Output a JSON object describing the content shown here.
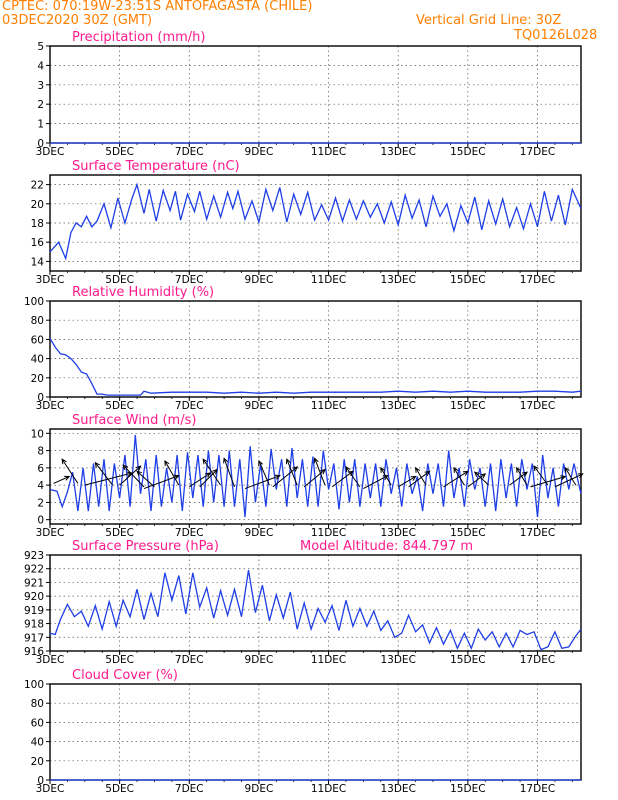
{
  "header": {
    "line1": "CPTEC:   070:19W-23:51S   ANTOFAGASTA (CHILE)",
    "line2": "03DEC2020 30Z (GMT)",
    "vgrid": "Vertical Grid Line: 30Z",
    "code": "TQ0126L028",
    "color": "#ff7f00"
  },
  "colors": {
    "title": "#ff1a8c",
    "series": "#1f3fe6",
    "grid": "#555555"
  },
  "chart_data": [
    {
      "id": "precip",
      "type": "line",
      "title": "Precipitation (mm/h)",
      "ylim": [
        0,
        5
      ],
      "yticks": [
        0,
        1,
        2,
        3,
        4,
        5
      ],
      "xticks": [
        "3DEC",
        "5DEC",
        "7DEC",
        "9DEC",
        "11DEC",
        "13DEC",
        "15DEC",
        "17DEC"
      ],
      "xticks_day": [
        3,
        5,
        7,
        9,
        11,
        13,
        15,
        17
      ],
      "xlim": [
        3,
        18.25
      ],
      "series": [
        {
          "x": [
            3,
            18.25
          ],
          "y": [
            0,
            0
          ]
        }
      ]
    },
    {
      "id": "temp",
      "type": "line",
      "title": "Surface Temperature (nC)",
      "ylim": [
        13,
        23
      ],
      "yticks": [
        14,
        16,
        18,
        20,
        22
      ],
      "xticks": [
        "3DEC",
        "5DEC",
        "7DEC",
        "9DEC",
        "11DEC",
        "13DEC",
        "15DEC",
        "17DEC"
      ],
      "xticks_day": [
        3,
        5,
        7,
        9,
        11,
        13,
        15,
        17
      ],
      "xlim": [
        3,
        18.25
      ],
      "series": [
        {
          "x": [
            3.0,
            3.25,
            3.45,
            3.6,
            3.75,
            3.9,
            4.05,
            4.2,
            4.35,
            4.55,
            4.75,
            4.95,
            5.15,
            5.35,
            5.5,
            5.7,
            5.85,
            6.05,
            6.25,
            6.45,
            6.6,
            6.75,
            6.95,
            7.15,
            7.3,
            7.5,
            7.7,
            7.9,
            8.1,
            8.25,
            8.4,
            8.6,
            8.8,
            9.0,
            9.2,
            9.4,
            9.6,
            9.8,
            10.0,
            10.2,
            10.4,
            10.6,
            10.8,
            11.0,
            11.2,
            11.4,
            11.6,
            11.8,
            12.0,
            12.2,
            12.4,
            12.6,
            12.8,
            13.0,
            13.2,
            13.4,
            13.6,
            13.8,
            14.0,
            14.2,
            14.4,
            14.6,
            14.8,
            15.0,
            15.2,
            15.4,
            15.6,
            15.8,
            16.0,
            16.2,
            16.4,
            16.6,
            16.8,
            17.0,
            17.2,
            17.4,
            17.6,
            17.8,
            18.0,
            18.25
          ],
          "y": [
            15,
            16,
            14.3,
            17,
            18,
            17.6,
            18.7,
            17.6,
            18.2,
            20,
            17.5,
            20.6,
            18,
            20.5,
            22,
            19,
            21.5,
            18.2,
            21.4,
            19.3,
            21.3,
            18.3,
            21,
            19.2,
            21.3,
            18.4,
            20.8,
            18.6,
            21.2,
            19.5,
            21.3,
            18.4,
            20.3,
            18.1,
            21.5,
            19.3,
            21.7,
            18.1,
            21,
            18.9,
            21.2,
            18.3,
            19.9,
            18.3,
            20.6,
            18.2,
            20.4,
            18.4,
            20.3,
            18.6,
            20,
            18,
            20.2,
            17.8,
            20.9,
            18.5,
            20.4,
            17.6,
            20.8,
            18.7,
            20,
            17.2,
            19.8,
            18,
            20.7,
            17.3,
            20.3,
            17.9,
            20.5,
            17.6,
            19.6,
            17.4,
            20,
            17.6,
            21.3,
            18.2,
            20.9,
            17.8,
            21.5,
            19.5
          ]
        }
      ]
    },
    {
      "id": "rh",
      "type": "line",
      "title": "Relative Humidity (%)",
      "ylim": [
        0,
        100
      ],
      "yticks": [
        0,
        20,
        40,
        60,
        80,
        100
      ],
      "xticks": [
        "3DEC",
        "5DEC",
        "7DEC",
        "9DEC",
        "11DEC",
        "13DEC",
        "15DEC",
        "17DEC"
      ],
      "xticks_day": [
        3,
        5,
        7,
        9,
        11,
        13,
        15,
        17
      ],
      "xlim": [
        3,
        18.25
      ],
      "series": [
        {
          "x": [
            3.0,
            3.15,
            3.3,
            3.45,
            3.6,
            3.75,
            3.9,
            4.05,
            4.2,
            4.35,
            4.5,
            4.65,
            4.8,
            5.0,
            5.3,
            5.6,
            5.7,
            5.9,
            6.5,
            7.0,
            7.5,
            8.0,
            8.5,
            9.0,
            9.5,
            10.0,
            10.5,
            11.0,
            11.5,
            12.0,
            12.5,
            13.0,
            13.5,
            14.0,
            14.5,
            15.0,
            15.5,
            16.0,
            16.5,
            17.0,
            17.5,
            18.0,
            18.25
          ],
          "y": [
            61,
            52,
            45,
            44,
            40,
            34,
            26,
            24,
            14,
            3,
            3,
            2,
            2,
            2,
            2,
            2,
            6,
            4,
            5,
            5,
            5,
            4,
            5,
            4,
            5,
            4,
            5,
            5,
            5,
            5,
            5,
            6,
            5,
            6,
            5,
            6,
            5,
            5,
            5,
            6,
            6,
            5,
            6
          ]
        }
      ]
    },
    {
      "id": "wind",
      "type": "line",
      "title": "Surface Wind (m/s)",
      "ylim": [
        -0.5,
        10.5
      ],
      "yticks": [
        0,
        2,
        4,
        6,
        8,
        10
      ],
      "xticks": [
        "3DEC",
        "5DEC",
        "7DEC",
        "9DEC",
        "11DEC",
        "13DEC",
        "15DEC",
        "17DEC"
      ],
      "xticks_day": [
        3,
        5,
        7,
        9,
        11,
        13,
        15,
        17
      ],
      "xlim": [
        3,
        18.25
      ],
      "series": [
        {
          "x": [
            3.0,
            3.2,
            3.35,
            3.5,
            3.65,
            3.8,
            3.95,
            4.1,
            4.25,
            4.4,
            4.55,
            4.7,
            4.85,
            5.0,
            5.15,
            5.3,
            5.45,
            5.6,
            5.75,
            5.9,
            6.05,
            6.2,
            6.35,
            6.5,
            6.65,
            6.8,
            6.95,
            7.1,
            7.25,
            7.4,
            7.55,
            7.7,
            7.85,
            8.0,
            8.15,
            8.3,
            8.45,
            8.6,
            8.75,
            8.9,
            9.05,
            9.2,
            9.35,
            9.5,
            9.65,
            9.8,
            9.95,
            10.1,
            10.25,
            10.4,
            10.55,
            10.7,
            10.85,
            11.0,
            11.15,
            11.3,
            11.45,
            11.6,
            11.75,
            11.9,
            12.05,
            12.2,
            12.35,
            12.5,
            12.65,
            12.8,
            12.95,
            13.1,
            13.25,
            13.4,
            13.55,
            13.7,
            13.85,
            14.0,
            14.15,
            14.3,
            14.45,
            14.6,
            14.75,
            14.9,
            15.05,
            15.2,
            15.35,
            15.5,
            15.65,
            15.8,
            15.95,
            16.1,
            16.25,
            16.4,
            16.55,
            16.7,
            16.85,
            17.0,
            17.15,
            17.3,
            17.45,
            17.6,
            17.75,
            17.9,
            18.05,
            18.25
          ],
          "y": [
            3.5,
            3.3,
            1.5,
            3.2,
            5.5,
            1,
            6,
            1,
            6.5,
            1.5,
            7,
            1,
            6.5,
            2.5,
            7.5,
            1.5,
            9.8,
            3,
            7,
            1,
            7.5,
            1.5,
            6,
            2,
            7.5,
            1,
            7.8,
            2.5,
            7.5,
            1.5,
            8,
            2,
            7.5,
            1.5,
            8,
            1.5,
            7,
            0.3,
            8.5,
            2,
            6.5,
            1.5,
            8.2,
            3.5,
            7,
            1.5,
            8.3,
            2.5,
            7,
            1.5,
            7.3,
            1.5,
            8,
            3.5,
            6.5,
            1.2,
            7,
            2,
            7,
            1.5,
            6.5,
            2.5,
            6.5,
            1.5,
            7,
            3,
            6,
            1.5,
            6.5,
            3,
            5,
            1,
            6.5,
            3,
            6.5,
            1.5,
            8,
            2.5,
            6,
            1.5,
            7,
            3.5,
            6,
            1.5,
            6.5,
            1,
            7,
            2.5,
            6.5,
            1.5,
            7,
            3.5,
            6.5,
            0.3,
            7.5,
            2.5,
            6,
            1.5,
            6.5,
            3.5,
            6.5,
            3
          ]
        }
      ],
      "arrows": [
        {
          "x": 3.1,
          "y": 4.2,
          "dx": 0.45,
          "dy": 0.8
        },
        {
          "x": 3.8,
          "y": 4.2,
          "dx": -0.45,
          "dy": 2.8
        },
        {
          "x": 4.0,
          "y": 4.0,
          "dx": 1.35,
          "dy": 1.4
        },
        {
          "x": 4.8,
          "y": 4.0,
          "dx": -0.5,
          "dy": 2.6
        },
        {
          "x": 5.0,
          "y": 4.0,
          "dx": 0.6,
          "dy": 2.2
        },
        {
          "x": 5.7,
          "y": 3.8,
          "dx": -0.6,
          "dy": 2.5
        },
        {
          "x": 5.7,
          "y": 3.6,
          "dx": 1.0,
          "dy": 1.5
        },
        {
          "x": 6.0,
          "y": 3.8,
          "dx": -0.5,
          "dy": 1.8
        },
        {
          "x": 6.7,
          "y": 4.0,
          "dx": -0.4,
          "dy": 2.8
        },
        {
          "x": 7.0,
          "y": 3.8,
          "dx": 0.6,
          "dy": 1.6
        },
        {
          "x": 7.3,
          "y": 3.8,
          "dx": 0.5,
          "dy": 2.0
        },
        {
          "x": 7.9,
          "y": 4.0,
          "dx": -0.5,
          "dy": 3.0
        },
        {
          "x": 8.3,
          "y": 3.8,
          "dx": -0.3,
          "dy": 3.3
        },
        {
          "x": 8.6,
          "y": 3.6,
          "dx": 1.0,
          "dy": 1.5
        },
        {
          "x": 9.3,
          "y": 4.0,
          "dx": -0.3,
          "dy": 2.8
        },
        {
          "x": 9.4,
          "y": 3.8,
          "dx": 0.7,
          "dy": 2.3
        },
        {
          "x": 10.1,
          "y": 4.0,
          "dx": -0.3,
          "dy": 3.0
        },
        {
          "x": 10.3,
          "y": 3.8,
          "dx": 0.6,
          "dy": 2.0
        },
        {
          "x": 10.9,
          "y": 4.0,
          "dx": -0.3,
          "dy": 3.1
        },
        {
          "x": 11.1,
          "y": 3.8,
          "dx": 0.6,
          "dy": 1.8
        },
        {
          "x": 11.9,
          "y": 3.8,
          "dx": -0.4,
          "dy": 2.3
        },
        {
          "x": 12.0,
          "y": 3.6,
          "dx": 0.7,
          "dy": 1.5
        },
        {
          "x": 12.8,
          "y": 4.0,
          "dx": -0.3,
          "dy": 2.0
        },
        {
          "x": 13.0,
          "y": 3.8,
          "dx": 0.5,
          "dy": 1.2
        },
        {
          "x": 13.3,
          "y": 3.8,
          "dx": 0.6,
          "dy": 1.8
        },
        {
          "x": 13.8,
          "y": 4.0,
          "dx": -0.3,
          "dy": 2.0
        },
        {
          "x": 14.3,
          "y": 3.8,
          "dx": 0.7,
          "dy": 1.8
        },
        {
          "x": 14.9,
          "y": 4.0,
          "dx": -0.3,
          "dy": 2.0
        },
        {
          "x": 15.0,
          "y": 3.8,
          "dx": 0.5,
          "dy": 1.5
        },
        {
          "x": 15.6,
          "y": 4.0,
          "dx": -0.4,
          "dy": 1.5
        },
        {
          "x": 16.2,
          "y": 4.0,
          "dx": 0.5,
          "dy": 1.5
        },
        {
          "x": 16.7,
          "y": 4.0,
          "dx": -0.3,
          "dy": 2.0
        },
        {
          "x": 16.8,
          "y": 3.8,
          "dx": 1.0,
          "dy": 1.2
        },
        {
          "x": 17.3,
          "y": 4.0,
          "dx": -0.4,
          "dy": 2.2
        },
        {
          "x": 17.5,
          "y": 3.8,
          "dx": 0.8,
          "dy": 1.5
        },
        {
          "x": 18.1,
          "y": 4.0,
          "dx": -0.3,
          "dy": 2.0
        }
      ]
    },
    {
      "id": "pres",
      "type": "line",
      "title": "Surface Pressure (hPa)",
      "extra": "Model Altitude: 844.797 m",
      "ylim": [
        916,
        923
      ],
      "yticks": [
        916,
        917,
        918,
        919,
        920,
        921,
        922,
        923
      ],
      "xticks": [
        "3DEC",
        "5DEC",
        "7DEC",
        "9DEC",
        "11DEC",
        "13DEC",
        "15DEC",
        "17DEC"
      ],
      "xticks_day": [
        3,
        5,
        7,
        9,
        11,
        13,
        15,
        17
      ],
      "xlim": [
        3,
        18.25
      ],
      "series": [
        {
          "x": [
            3.0,
            3.15,
            3.3,
            3.5,
            3.7,
            3.9,
            4.1,
            4.3,
            4.5,
            4.7,
            4.9,
            5.1,
            5.3,
            5.5,
            5.7,
            5.9,
            6.1,
            6.3,
            6.5,
            6.7,
            6.9,
            7.1,
            7.3,
            7.5,
            7.7,
            7.9,
            8.1,
            8.3,
            8.5,
            8.7,
            8.9,
            9.1,
            9.3,
            9.5,
            9.7,
            9.9,
            10.1,
            10.3,
            10.5,
            10.7,
            10.9,
            11.1,
            11.3,
            11.5,
            11.7,
            11.9,
            12.1,
            12.3,
            12.5,
            12.7,
            12.9,
            13.1,
            13.3,
            13.5,
            13.7,
            13.9,
            14.1,
            14.3,
            14.5,
            14.7,
            14.9,
            15.1,
            15.3,
            15.5,
            15.7,
            15.9,
            16.1,
            16.3,
            16.5,
            16.7,
            16.9,
            17.1,
            17.3,
            17.5,
            17.7,
            17.9,
            18.1,
            18.25
          ],
          "y": [
            917.3,
            917.2,
            918.3,
            919.4,
            918.5,
            918.9,
            917.8,
            919.3,
            917.6,
            919.6,
            917.8,
            919.7,
            918.5,
            920.5,
            918.3,
            920.2,
            918.5,
            921.7,
            919.7,
            921.5,
            918.7,
            921.7,
            919.2,
            920.6,
            918.4,
            920.4,
            918.6,
            920.5,
            918.5,
            921.9,
            918.8,
            920.8,
            918.2,
            920.1,
            918.4,
            920.3,
            917.6,
            919.5,
            917.6,
            919.1,
            918.1,
            919.3,
            917.5,
            919.7,
            917.8,
            919.1,
            917.8,
            918.9,
            917.5,
            918.2,
            917,
            917.3,
            918.6,
            917.4,
            917.9,
            916.6,
            917.7,
            916.5,
            917.5,
            916.2,
            917.3,
            916.2,
            917.6,
            916.8,
            917.4,
            916.3,
            917.3,
            916.3,
            917.5,
            917.2,
            917.4,
            916.1,
            916.3,
            917.4,
            916.2,
            916.3,
            917.1,
            917.6
          ]
        }
      ]
    },
    {
      "id": "cloud",
      "type": "line",
      "title": "Cloud Cover (%)",
      "ylim": [
        0,
        100
      ],
      "yticks": [
        0,
        20,
        40,
        60,
        80,
        100
      ],
      "xticks": [
        "3DEC",
        "5DEC",
        "7DEC",
        "9DEC",
        "11DEC",
        "13DEC",
        "15DEC",
        "17DEC"
      ],
      "xticks_day": [
        3,
        5,
        7,
        9,
        11,
        13,
        15,
        17
      ],
      "xlim": [
        3,
        18.25
      ],
      "series": [
        {
          "x": [
            3,
            18.25
          ],
          "y": [
            0,
            0
          ]
        }
      ]
    }
  ]
}
